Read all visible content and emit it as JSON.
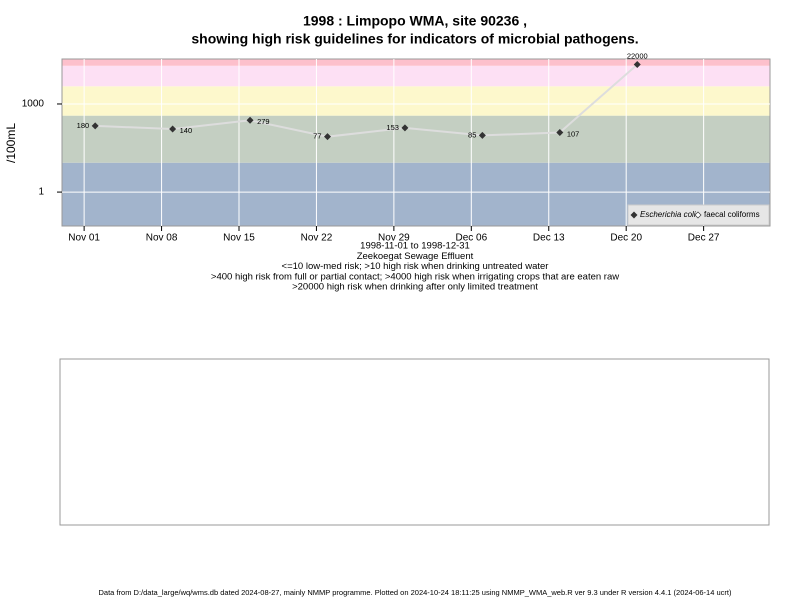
{
  "chart_data": {
    "type": "line",
    "title": "1998 : Limpopo WMA, site 90236 ,",
    "subtitle": "showing high risk guidelines for indicators of microbial pathogens.",
    "y_label": "/100mL",
    "x_label_lines": [
      "1998-11-01 to 1998-12-31",
      "Zeekoegat Sewage Effluent",
      "<=10 low-med risk; >10 high risk when drinking untreated water",
      ">400 high risk from full or partial contact; >4000 high risk when irrigating crops that are eaten raw",
      ">20000 high risk when drinking after only limited treatment"
    ],
    "x": [
      "Nov 02",
      "Nov 09",
      "Nov 16",
      "Nov 23",
      "Nov 30",
      "Dec 07",
      "Dec 14",
      "Dec 21"
    ],
    "series": [
      {
        "name": "Escherichia coli",
        "color": "#333333",
        "values": [
          180,
          140,
          279,
          77,
          153,
          85,
          107,
          22000
        ]
      },
      {
        "name": "faecal coliforms",
        "color": "#333333",
        "values": [
          null,
          null,
          null,
          null,
          null,
          null,
          null,
          null
        ]
      }
    ],
    "xlim": [
      "Oct 30",
      "Jan 02"
    ],
    "xticks": [
      "Nov 01",
      "Nov 08",
      "Nov 15",
      "Nov 22",
      "Nov 29",
      "Dec 06",
      "Dec 13",
      "Dec 20",
      "Dec 27"
    ],
    "ylim": [
      0.07,
      34000
    ],
    "yticks": [
      1,
      1000
    ],
    "log_y": true,
    "grid": true,
    "band_edges": [
      10,
      400,
      4000,
      20000
    ],
    "band_colors": [
      "#a2b4cc",
      "#c4cfc2",
      "#fdf8cc",
      "#fde0f4",
      "#fdc0cc"
    ],
    "line_color": "#dddddd",
    "legend": "bottom-right",
    "footer": "Data from D:/data_large/wq/wms.db dated 2024-08-27, mainly NMMP programme. Plotted on 2024-10-24 18:11:25 using NMMP_WMA_web.R ver 9.3 under R version 4.4.1 (2024-06-14 ucrt)"
  }
}
